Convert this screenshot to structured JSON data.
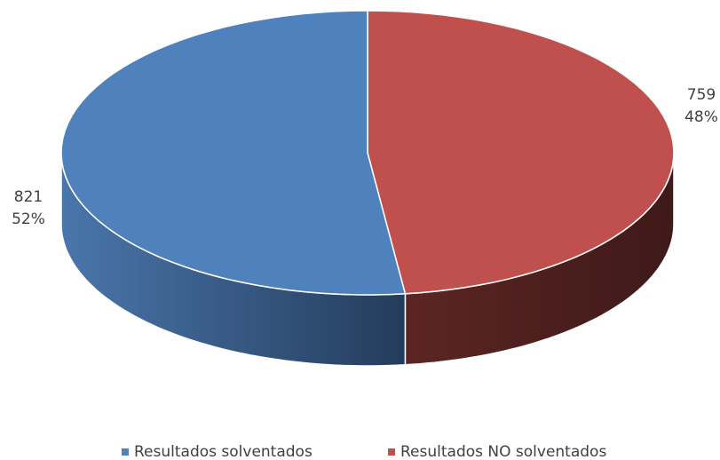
{
  "chart_data": {
    "type": "pie",
    "categories": [
      "Resultados solventados",
      "Resultados NO solventados"
    ],
    "values": [
      821,
      759
    ],
    "percent_labels": [
      "52%",
      "48%"
    ],
    "colors": [
      "#4f81bd",
      "#c0504d"
    ],
    "legend": "bottom"
  }
}
